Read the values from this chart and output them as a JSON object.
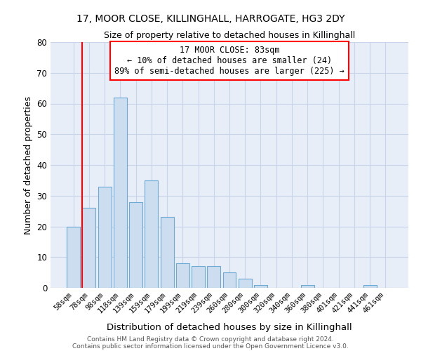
{
  "title1": "17, MOOR CLOSE, KILLINGHALL, HARROGATE, HG3 2DY",
  "title2": "Size of property relative to detached houses in Killinghall",
  "xlabel": "Distribution of detached houses by size in Killinghall",
  "ylabel": "Number of detached properties",
  "categories": [
    "58sqm",
    "78sqm",
    "98sqm",
    "118sqm",
    "139sqm",
    "159sqm",
    "179sqm",
    "199sqm",
    "219sqm",
    "239sqm",
    "260sqm",
    "280sqm",
    "300sqm",
    "320sqm",
    "340sqm",
    "360sqm",
    "380sqm",
    "401sqm",
    "421sqm",
    "441sqm",
    "461sqm"
  ],
  "values": [
    20,
    26,
    33,
    62,
    28,
    35,
    23,
    8,
    7,
    7,
    5,
    3,
    1,
    0,
    0,
    1,
    0,
    0,
    0,
    1,
    0
  ],
  "bar_color": "#ccddf0",
  "bar_edge_color": "#6aaad4",
  "grid_color": "#c8d4e8",
  "background_color": "#e8eef8",
  "annotation_line1": "17 MOOR CLOSE: 83sqm",
  "annotation_line2": "← 10% of detached houses are smaller (24)",
  "annotation_line3": "89% of semi-detached houses are larger (225) →",
  "ylim": [
    0,
    80
  ],
  "yticks": [
    0,
    10,
    20,
    30,
    40,
    50,
    60,
    70,
    80
  ],
  "red_line_x": 0.5,
  "footer1": "Contains HM Land Registry data © Crown copyright and database right 2024.",
  "footer2": "Contains public sector information licensed under the Open Government Licence v3.0."
}
